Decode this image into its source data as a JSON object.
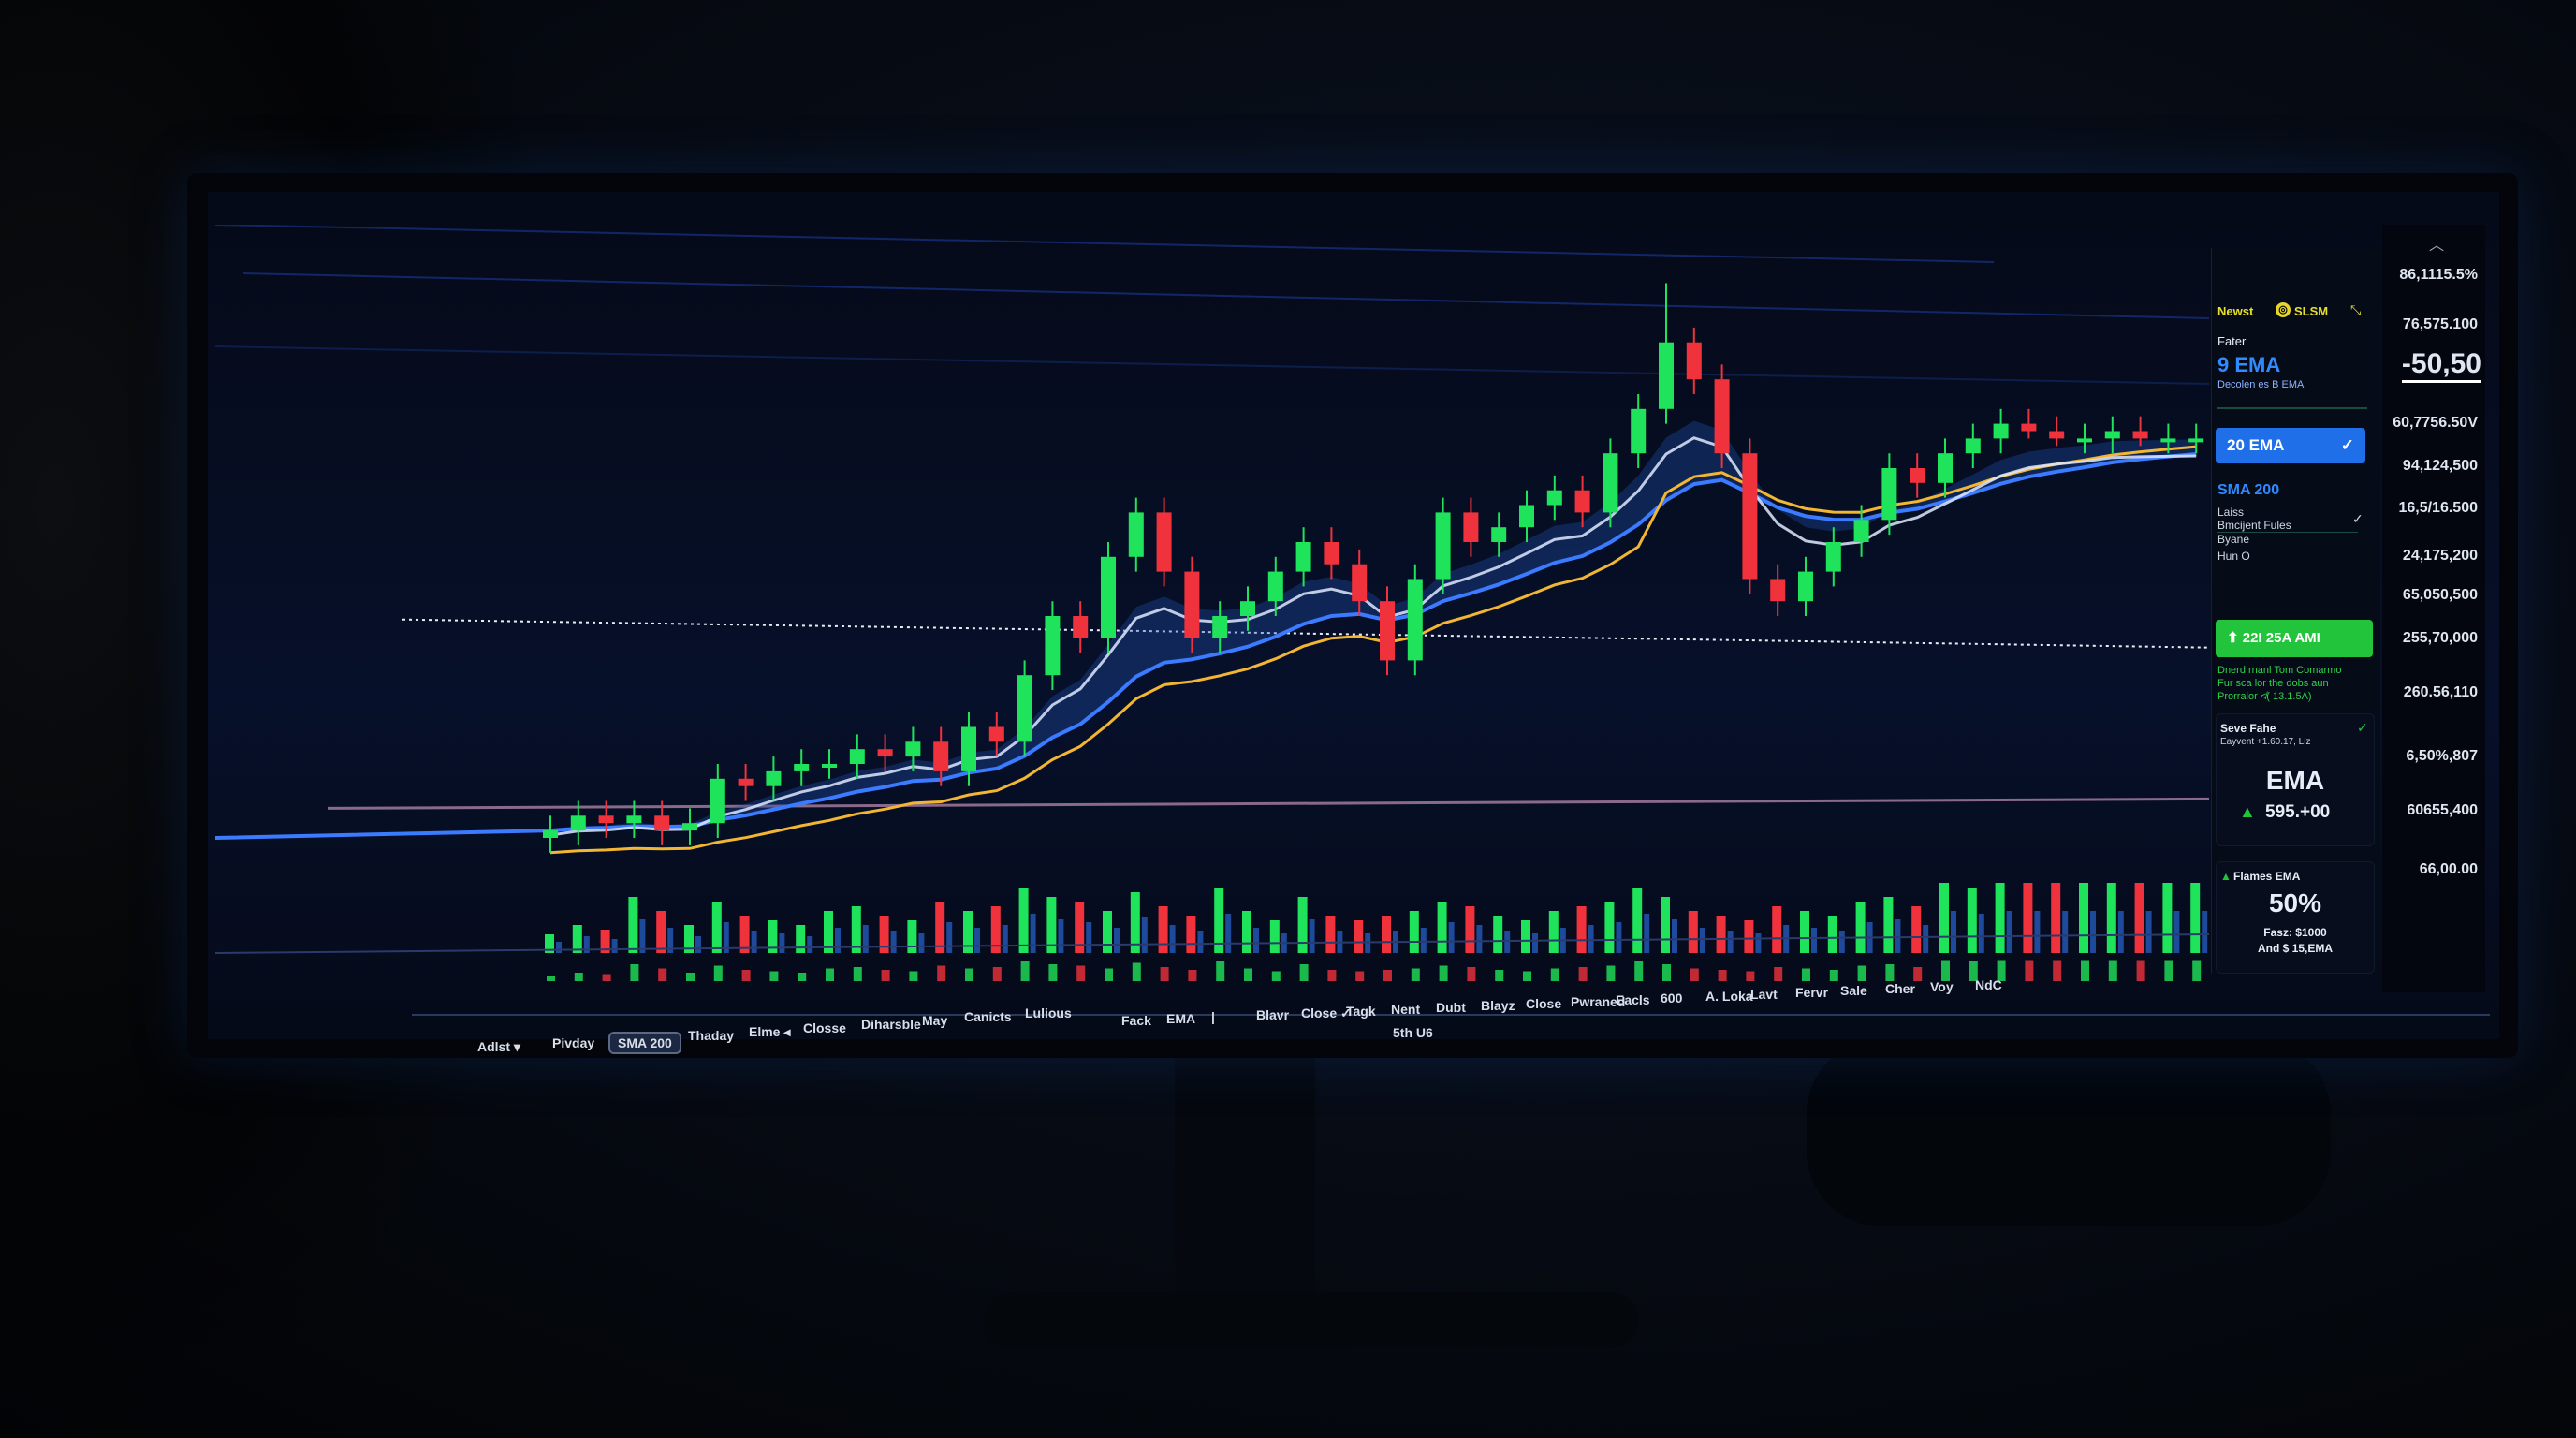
{
  "panel": {
    "header_label": "Newst",
    "coin_label": "SLSM",
    "section_label": "Fater",
    "ema9": "9 EMA",
    "ema9_sub": "Decolen es B EMA",
    "ema20_button": "20 EMA",
    "sma200": "SMA 200",
    "options": [
      "Laiss",
      "Bmcijent Fules",
      "Byane",
      "Hun O"
    ],
    "green_button": "22I 25A AMI",
    "green_notes": [
      "Dnerd rnanl Tom Comarmo",
      "Fur sca lor the dobs aun",
      "Prorralor ≮( 13.1.5A)"
    ],
    "card1": {
      "title": "Seve Fahe",
      "sub": "Eayvent +1.60.17, Liz",
      "big": "EMA",
      "value": "595.+00"
    },
    "card2": {
      "title": "Flames EMA",
      "big": "50%",
      "line1": "Fasz: $1000",
      "line2": "And $ 15,EMA"
    }
  },
  "axis": {
    "labels": [
      "86,1115.5%",
      "76,575.100",
      "-50,50",
      "60,7756.50V",
      "94,124,500",
      "16,5/16.500",
      "24,175,200",
      "65,050,500",
      "255,70,000",
      "260.56,110",
      "6,50%,807",
      "60655,400",
      "66,00.00"
    ]
  },
  "toolbar": {
    "left_items": [
      "Adlst ▾",
      "Pivday",
      "SMA 200",
      "Thaday",
      "Elme ◂",
      "Closse",
      "Diharsble",
      "May",
      "Canicts",
      "Lulious"
    ],
    "right_items": [
      "Fack",
      "EMA",
      "|",
      "Blavr",
      "Close ✓",
      "Tagk",
      "Nent",
      "Dubt",
      "Blayz",
      "Close",
      "Pwraned",
      "Eacls",
      "600",
      "A. Loka",
      "Lavt",
      "Fervr",
      "Sale",
      "Cher",
      "Voy",
      "NdC"
    ],
    "footer": "5th U6"
  },
  "colors": {
    "up": "#1fe35a",
    "down": "#f0323c",
    "ema_fast": "#3b7bff",
    "ema_slow": "#f2b632",
    "sma": "#dfe9ff",
    "accent": "#1e6fe8"
  },
  "chart_data": {
    "type": "candlestick",
    "title": "",
    "xlabel": "",
    "ylabel": "",
    "ylim": [
      0,
      100
    ],
    "grid": false,
    "indicators": [
      "9 EMA",
      "20 EMA",
      "SMA 200"
    ],
    "open": [
      20,
      21,
      23,
      22,
      23,
      21,
      22,
      28,
      27,
      29,
      30,
      30,
      32,
      31,
      33,
      29,
      35,
      33,
      42,
      50,
      47,
      58,
      64,
      56,
      47,
      50,
      52,
      56,
      60,
      57,
      52,
      44,
      55,
      64,
      60,
      62,
      65,
      67,
      64,
      72,
      78,
      87,
      82,
      72,
      55,
      52,
      56,
      60,
      63,
      70,
      68,
      72,
      74,
      76,
      75,
      74,
      74,
      75,
      74,
      74
    ],
    "high": [
      23,
      25,
      25,
      25,
      25,
      24,
      30,
      30,
      31,
      32,
      32,
      34,
      34,
      35,
      35,
      37,
      37,
      44,
      52,
      52,
      60,
      66,
      66,
      58,
      52,
      54,
      58,
      62,
      62,
      59,
      54,
      57,
      66,
      66,
      64,
      67,
      69,
      69,
      74,
      80,
      95,
      89,
      84,
      74,
      57,
      58,
      62,
      65,
      72,
      72,
      74,
      76,
      78,
      78,
      77,
      76,
      77,
      77,
      76,
      76
    ],
    "low": [
      18,
      19,
      20,
      20,
      19,
      19,
      20,
      25,
      25,
      27,
      28,
      28,
      29,
      29,
      27,
      27,
      31,
      31,
      40,
      45,
      45,
      56,
      54,
      45,
      45,
      48,
      50,
      54,
      55,
      50,
      42,
      42,
      53,
      58,
      58,
      60,
      63,
      62,
      62,
      70,
      76,
      80,
      70,
      53,
      50,
      50,
      54,
      58,
      61,
      66,
      66,
      70,
      72,
      74,
      73,
      72,
      72,
      73,
      72,
      72
    ],
    "close": [
      21,
      23,
      22,
      23,
      21,
      22,
      28,
      27,
      29,
      30,
      30,
      32,
      31,
      33,
      29,
      35,
      33,
      42,
      50,
      47,
      58,
      64,
      56,
      47,
      50,
      52,
      56,
      60,
      57,
      52,
      44,
      55,
      64,
      60,
      62,
      65,
      67,
      64,
      72,
      78,
      87,
      82,
      72,
      55,
      52,
      56,
      60,
      63,
      70,
      68,
      72,
      74,
      76,
      75,
      74,
      74,
      75,
      74,
      74,
      74
    ],
    "volume": [
      20,
      30,
      25,
      60,
      45,
      30,
      55,
      40,
      35,
      30,
      45,
      50,
      40,
      35,
      55,
      45,
      50,
      70,
      60,
      55,
      45,
      65,
      50,
      40,
      70,
      45,
      35,
      60,
      40,
      35,
      40,
      45,
      55,
      50,
      40,
      35,
      45,
      50,
      55,
      70,
      60,
      45,
      40,
      35,
      50,
      45,
      40,
      55,
      60,
      50,
      75,
      70,
      75,
      75,
      75,
      75,
      75,
      75,
      75,
      75
    ],
    "reference_lines": [
      47,
      24
    ]
  }
}
